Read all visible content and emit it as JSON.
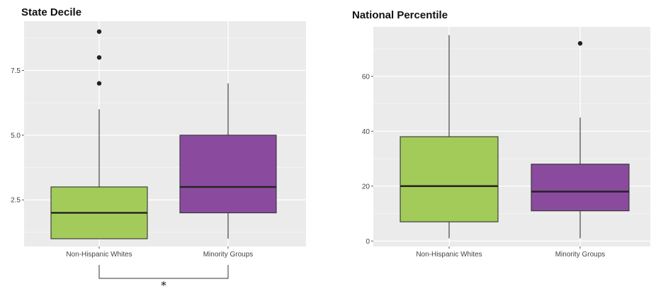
{
  "chart_data": [
    {
      "type": "boxplot",
      "title": "State Decile",
      "xlabel": "",
      "ylabel": "",
      "ylim": [
        0.7,
        9.4
      ],
      "y_ticks": [
        2.5,
        5.0,
        7.5
      ],
      "y_tick_labels": [
        "2.5",
        "5.0",
        "7.5"
      ],
      "categories": [
        "Non-Hispanic Whites",
        "Minority Groups"
      ],
      "colors": [
        "#a3cb5a",
        "#8a4b9e"
      ],
      "grid": true,
      "boxes": [
        {
          "category": "Non-Hispanic Whites",
          "whisker_low": 1,
          "q1": 1,
          "median": 2,
          "q3": 3,
          "whisker_high": 6,
          "outliers": [
            7,
            8,
            9
          ]
        },
        {
          "category": "Minority Groups",
          "whisker_low": 1,
          "q1": 2,
          "median": 3,
          "q3": 5,
          "whisker_high": 7,
          "outliers": []
        }
      ],
      "annotation": {
        "type": "significance_bracket",
        "between": [
          "Non-Hispanic Whites",
          "Minority Groups"
        ],
        "label": "*"
      }
    },
    {
      "type": "boxplot",
      "title": "National Percentile",
      "xlabel": "",
      "ylabel": "",
      "ylim": [
        -2,
        78
      ],
      "y_ticks": [
        0,
        20,
        40,
        60
      ],
      "y_tick_labels": [
        "0",
        "20",
        "40",
        "60"
      ],
      "categories": [
        "Non-Hispanic Whites",
        "Minority Groups"
      ],
      "colors": [
        "#a3cb5a",
        "#8a4b9e"
      ],
      "grid": true,
      "boxes": [
        {
          "category": "Non-Hispanic Whites",
          "whisker_low": 1,
          "q1": 7,
          "median": 20,
          "q3": 38,
          "whisker_high": 75,
          "outliers": []
        },
        {
          "category": "Minority Groups",
          "whisker_low": 1,
          "q1": 11,
          "median": 18,
          "q3": 28,
          "whisker_high": 45,
          "outliers": [
            72
          ]
        }
      ]
    }
  ]
}
